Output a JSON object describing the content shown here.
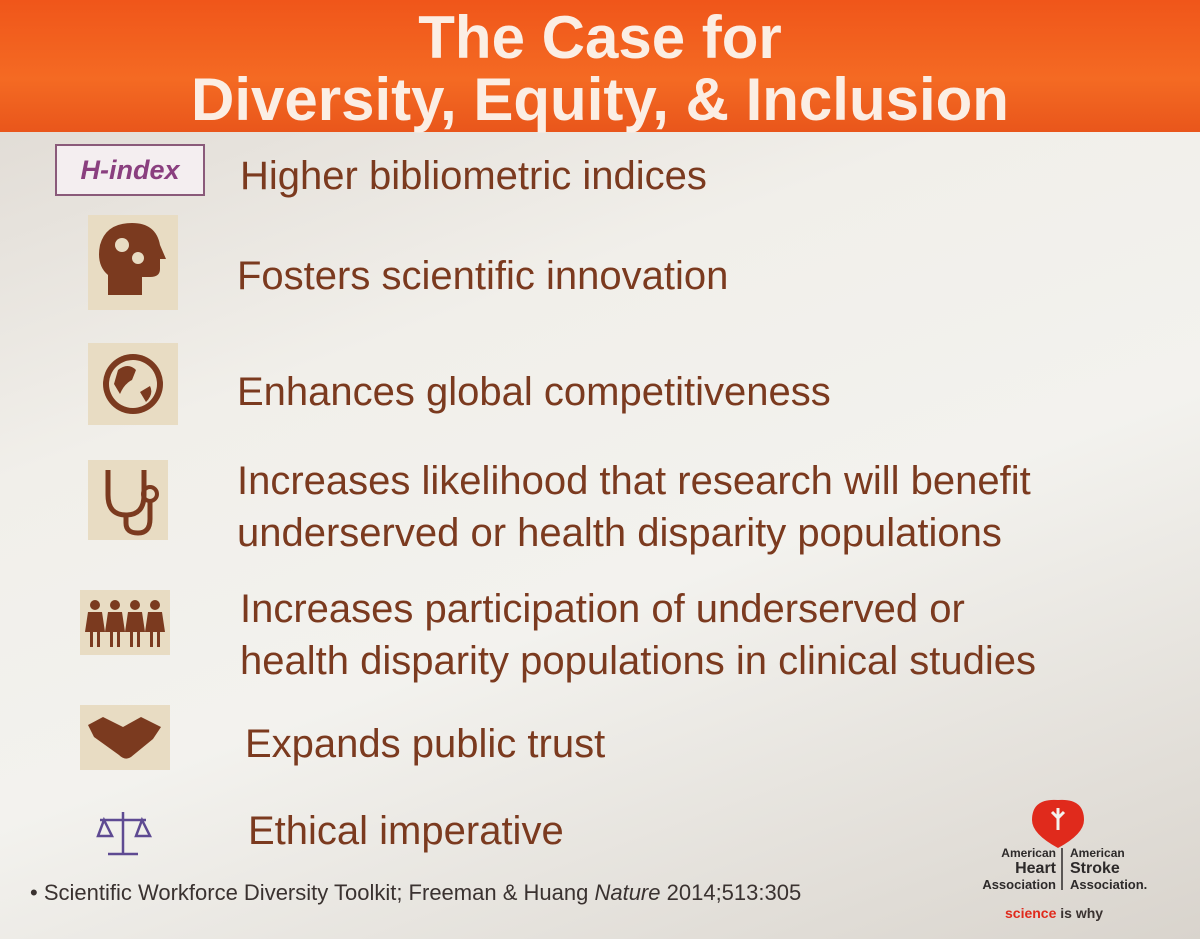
{
  "header": {
    "title_lines": [
      "The Case for",
      "Diversity, Equity, & Inclusion"
    ]
  },
  "items": [
    {
      "icon_label": "H-index",
      "lines": [
        "Higher bibliometric indices"
      ]
    },
    {
      "lines": [
        "Fosters scientific innovation"
      ]
    },
    {
      "lines": [
        "Enhances global competitiveness"
      ]
    },
    {
      "lines": [
        "Increases likelihood that research will benefit",
        "underserved or health disparity populations"
      ]
    },
    {
      "lines": [
        "Increases participation of underserved or",
        "health disparity populations in clinical studies"
      ]
    },
    {
      "lines": [
        "Expands public trust"
      ]
    },
    {
      "lines": [
        "Ethical imperative"
      ]
    }
  ],
  "footer": {
    "bullet": "•",
    "citation_authors": "Scientific Workforce Diversity Toolkit; Freeman & Huang",
    "journal": "Nature",
    "citation_details": "2014;513:305"
  },
  "logo": {
    "heart": [
      "American",
      "Heart",
      "Association"
    ],
    "stroke": [
      "American",
      "Stroke",
      "Association."
    ],
    "tagline_highlight": "science",
    "tagline_rest": "is why"
  }
}
